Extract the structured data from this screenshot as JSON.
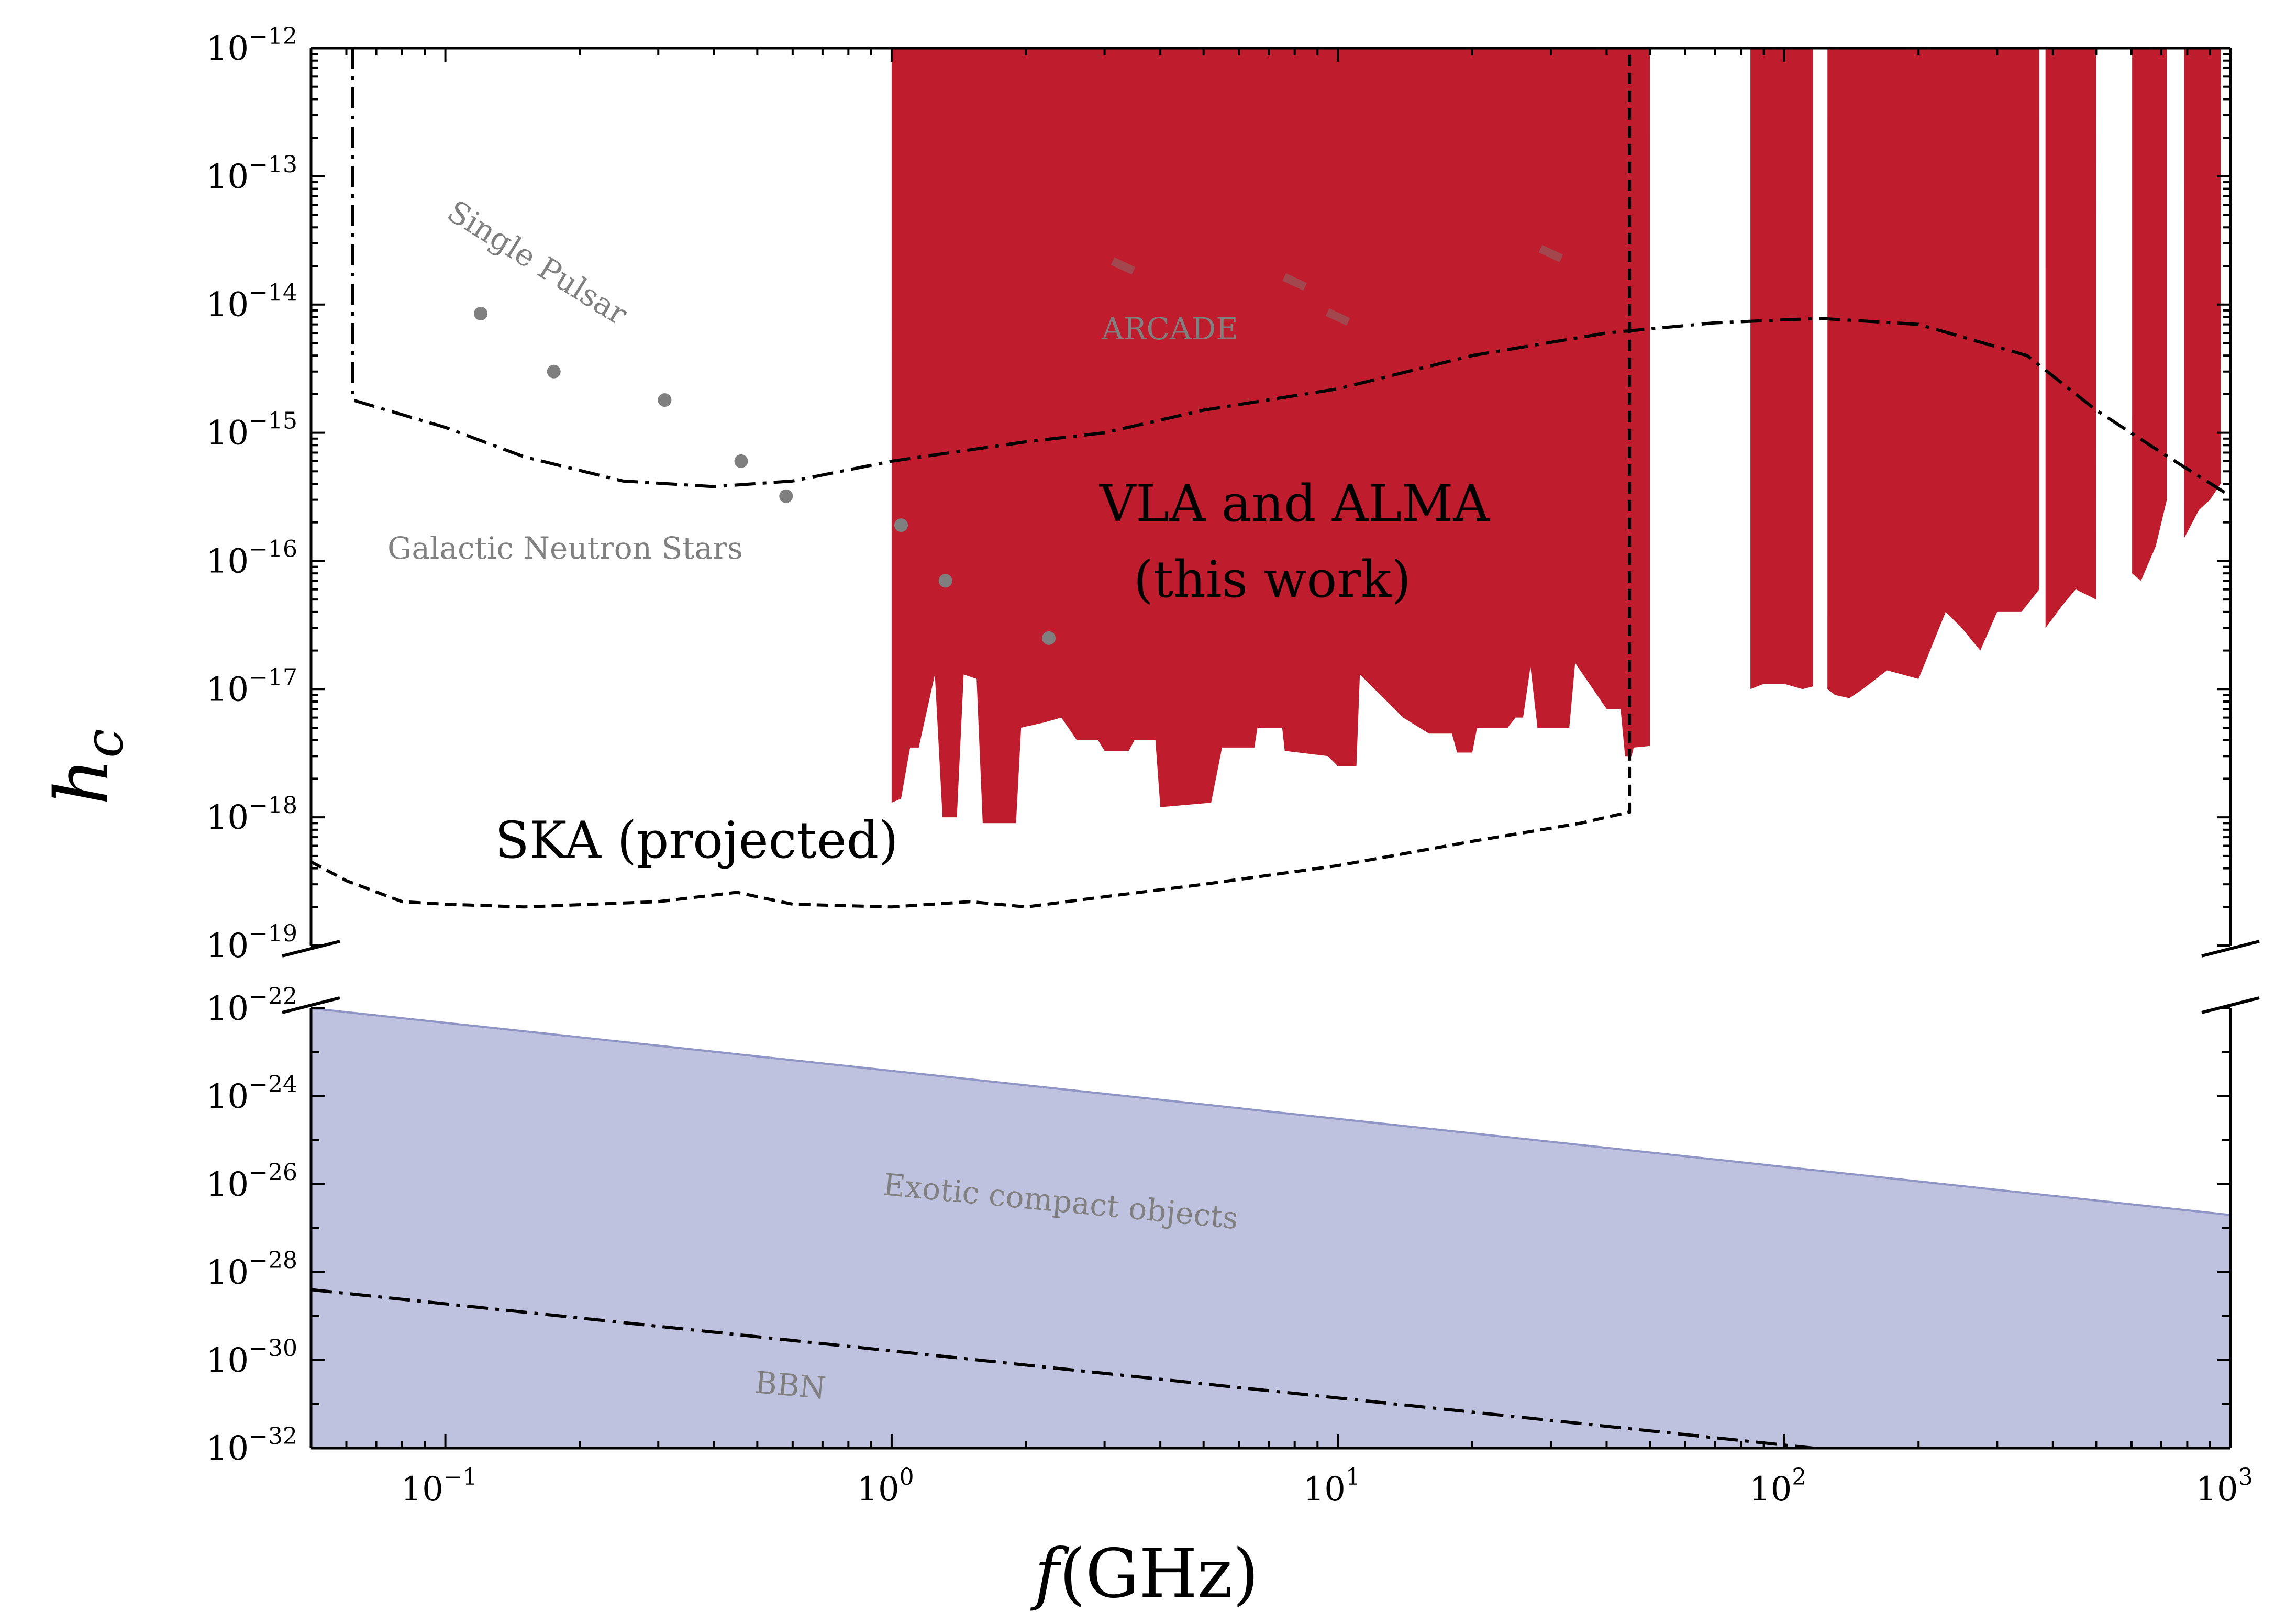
{
  "chart_data": {
    "type": "area",
    "xlabel": "f(GHz)",
    "ylabel": "h_c",
    "xscale": "log",
    "yscale": "log",
    "xlim": [
      0.05,
      1000
    ],
    "ylim_upper": [
      1e-19,
      1e-12
    ],
    "ylim_lower": [
      1e-32,
      1e-22
    ],
    "broken_y_axis": true,
    "colors": {
      "vla_alma": "#bf1d2d",
      "exotic": "#bfc2de",
      "exotic_edge": "#8f96c6",
      "points": "#7f7f7f",
      "annotation": "#808080",
      "lines": "#000000"
    },
    "x_ticks": [
      {
        "base": "10",
        "exp": "−1"
      },
      {
        "base": "10",
        "exp": "0"
      },
      {
        "base": "10",
        "exp": "1"
      },
      {
        "base": "10",
        "exp": "2"
      },
      {
        "base": "10",
        "exp": "3"
      }
    ],
    "y_ticks_upper": [
      {
        "base": "10",
        "exp": "−12"
      },
      {
        "base": "10",
        "exp": "−13"
      },
      {
        "base": "10",
        "exp": "−14"
      },
      {
        "base": "10",
        "exp": "−15"
      },
      {
        "base": "10",
        "exp": "−16"
      },
      {
        "base": "10",
        "exp": "−17"
      },
      {
        "base": "10",
        "exp": "−18"
      },
      {
        "base": "10",
        "exp": "−19"
      }
    ],
    "y_ticks_lower": [
      {
        "base": "10",
        "exp": "−22"
      },
      {
        "base": "10",
        "exp": "−24"
      },
      {
        "base": "10",
        "exp": "−26"
      },
      {
        "base": "10",
        "exp": "−28"
      },
      {
        "base": "10",
        "exp": "−30"
      },
      {
        "base": "10",
        "exp": "−32"
      }
    ],
    "series": [
      {
        "name": "VLA and ALMA (this work)",
        "kind": "excluded region (filled above lower bound to 1e-12)",
        "bands": [
          {
            "f_min": 1.0,
            "f_max": 50.0,
            "lower_bound": [
              [
                1.0,
                1.3e-18
              ],
              [
                1.05,
                1.4e-18
              ],
              [
                1.1,
                3.5e-18
              ],
              [
                1.15,
                3.5e-18
              ],
              [
                1.25,
                1.3e-17
              ],
              [
                1.3,
                1e-18
              ],
              [
                1.4,
                1e-18
              ],
              [
                1.45,
                1.3e-17
              ],
              [
                1.55,
                1.2e-17
              ],
              [
                1.6,
                9e-19
              ],
              [
                1.9,
                9e-19
              ],
              [
                1.95,
                5e-18
              ],
              [
                2.2,
                5.5e-18
              ],
              [
                2.4,
                6e-18
              ],
              [
                2.6,
                4e-18
              ],
              [
                2.9,
                4e-18
              ],
              [
                3.0,
                3.3e-18
              ],
              [
                3.4,
                3.3e-18
              ],
              [
                3.5,
                4e-18
              ],
              [
                3.9,
                4e-18
              ],
              [
                4.0,
                1.2e-18
              ],
              [
                5.2,
                1.3e-18
              ],
              [
                5.5,
                3.5e-18
              ],
              [
                6.5,
                3.5e-18
              ],
              [
                6.6,
                5e-18
              ],
              [
                7.5,
                5e-18
              ],
              [
                7.6,
                3.3e-18
              ],
              [
                9.5,
                3e-18
              ],
              [
                10.0,
                2.5e-18
              ],
              [
                11.0,
                2.5e-18
              ],
              [
                11.2,
                1.3e-17
              ],
              [
                14.0,
                6e-18
              ],
              [
                16.0,
                4.5e-18
              ],
              [
                18.0,
                4.5e-18
              ],
              [
                18.5,
                3.2e-18
              ],
              [
                20.0,
                3.2e-18
              ],
              [
                20.5,
                5e-18
              ],
              [
                24.0,
                5e-18
              ],
              [
                25.0,
                6e-18
              ],
              [
                26.0,
                6e-18
              ],
              [
                27.0,
                1.5e-17
              ],
              [
                28.0,
                5e-18
              ],
              [
                33.0,
                5e-18
              ],
              [
                34.0,
                1.6e-17
              ],
              [
                40.0,
                7e-18
              ],
              [
                43.0,
                7e-18
              ],
              [
                44.0,
                3e-18
              ],
              [
                45.5,
                3e-18
              ],
              [
                46.0,
                3.5e-18
              ],
              [
                50.0,
                3.6e-18
              ]
            ]
          },
          {
            "f_min": 84.0,
            "f_max": 116.0,
            "lower_bound": [
              [
                84.0,
                1e-17
              ],
              [
                90.0,
                1.1e-17
              ],
              [
                100.0,
                1.1e-17
              ],
              [
                110.0,
                1e-17
              ],
              [
                116.0,
                1.05e-17
              ]
            ]
          },
          {
            "f_min": 125.0,
            "f_max": 373.0,
            "lower_bound": [
              [
                125.0,
                1e-17
              ],
              [
                130.0,
                9e-18
              ],
              [
                140.0,
                8.5e-18
              ],
              [
                150.0,
                1e-17
              ],
              [
                170.0,
                1.4e-17
              ],
              [
                200.0,
                1.2e-17
              ],
              [
                230.0,
                4e-17
              ],
              [
                250.0,
                3e-17
              ],
              [
                275.0,
                2e-17
              ],
              [
                300.0,
                4e-17
              ],
              [
                340.0,
                4e-17
              ],
              [
                373.0,
                6e-17
              ]
            ]
          },
          {
            "f_min": 385.0,
            "f_max": 500.0,
            "lower_bound": [
              [
                385.0,
                3e-17
              ],
              [
                420.0,
                4.5e-17
              ],
              [
                450.0,
                6e-17
              ],
              [
                500.0,
                5e-17
              ]
            ]
          },
          {
            "f_min": 602.0,
            "f_max": 720.0,
            "lower_bound": [
              [
                602.0,
                8e-17
              ],
              [
                630.0,
                7e-17
              ],
              [
                680.0,
                1.3e-16
              ],
              [
                720.0,
                3e-16
              ]
            ]
          },
          {
            "f_min": 787.0,
            "f_max": 950.0,
            "lower_bound": [
              [
                787.0,
                1.5e-16
              ],
              [
                850.0,
                2.5e-16
              ],
              [
                900.0,
                3e-16
              ],
              [
                950.0,
                4e-16
              ]
            ]
          }
        ]
      },
      {
        "name": "SKA (projected)",
        "style": "dashed",
        "points": [
          [
            0.05,
            4.5e-19
          ],
          [
            0.06,
            3.2e-19
          ],
          [
            0.08,
            2.2e-19
          ],
          [
            0.1,
            2.1e-19
          ],
          [
            0.15,
            2e-19
          ],
          [
            0.3,
            2.2e-19
          ],
          [
            0.45,
            2.6e-19
          ],
          [
            0.6,
            2.1e-19
          ],
          [
            1.0,
            2e-19
          ],
          [
            1.5,
            2.2e-19
          ],
          [
            2.0,
            2e-19
          ],
          [
            3.0,
            2.4e-19
          ],
          [
            5.0,
            3e-19
          ],
          [
            10.0,
            4.2e-19
          ],
          [
            20.0,
            6.5e-19
          ],
          [
            35.0,
            9e-19
          ],
          [
            45.0,
            1.1e-18
          ],
          [
            45.0,
            1e-12
          ]
        ]
      },
      {
        "name": "",
        "style": "dashdot",
        "points": [
          [
            0.062,
            1e-12
          ],
          [
            0.062,
            1.8e-15
          ],
          [
            0.1,
            1.1e-15
          ],
          [
            0.15,
            6.5e-16
          ],
          [
            0.25,
            4.2e-16
          ],
          [
            0.4,
            3.8e-16
          ],
          [
            0.6,
            4.2e-16
          ],
          [
            1.0,
            6e-16
          ],
          [
            2.0,
            8.5e-16
          ],
          [
            3.0,
            1e-15
          ],
          [
            5.0,
            1.5e-15
          ],
          [
            10.0,
            2.2e-15
          ],
          [
            20.0,
            4e-15
          ],
          [
            40.0,
            6e-15
          ],
          [
            70.0,
            7.2e-15
          ],
          [
            120.0,
            7.8e-15
          ],
          [
            200.0,
            7e-15
          ],
          [
            350.0,
            4e-15
          ],
          [
            500.0,
            1.5e-15
          ],
          [
            700.0,
            7e-16
          ],
          [
            1000.0,
            3.2e-16
          ]
        ]
      },
      {
        "name": "Galactic Neutron Stars",
        "kind": "points",
        "points": [
          [
            0.12,
            8.5e-15
          ],
          [
            0.175,
            3e-15
          ],
          [
            0.31,
            1.8e-15
          ],
          [
            0.46,
            6e-16
          ],
          [
            0.58,
            3.2e-16
          ],
          [
            1.05,
            1.9e-16
          ],
          [
            1.32,
            7e-17
          ],
          [
            2.25,
            2.5e-17
          ]
        ]
      },
      {
        "name": "ARCADE",
        "kind": "small bands",
        "points": [
          [
            3.3,
            2e-14
          ],
          [
            8.0,
            1.5e-14
          ],
          [
            10.0,
            8e-15
          ],
          [
            30.0,
            2.5e-14
          ]
        ]
      },
      {
        "name": "Exotic compact objects",
        "kind": "filled band",
        "upper": [
          [
            0.05,
            1e-22
          ],
          [
            1000.0,
            2e-27
          ]
        ],
        "lower": [
          [
            0.05,
            1e-32
          ],
          [
            1000.0,
            1e-32
          ]
        ]
      },
      {
        "name": "BBN",
        "style": "dashdot",
        "points": [
          [
            0.05,
            4e-29
          ],
          [
            1000.0,
            1e-33
          ]
        ]
      }
    ],
    "annotations": [
      {
        "id": "single_pulsar",
        "text": "Single Pulsar"
      },
      {
        "id": "galactic_ns",
        "text": "Galactic Neutron Stars"
      },
      {
        "id": "arcade",
        "text": "ARCADE"
      },
      {
        "id": "vla_line1",
        "text": "VLA and ALMA"
      },
      {
        "id": "vla_line2",
        "text": "(this work)"
      },
      {
        "id": "ska",
        "text": "SKA (projected)"
      },
      {
        "id": "exotic",
        "text": "Exotic compact objects"
      },
      {
        "id": "bbn",
        "text": "BBN"
      }
    ]
  }
}
